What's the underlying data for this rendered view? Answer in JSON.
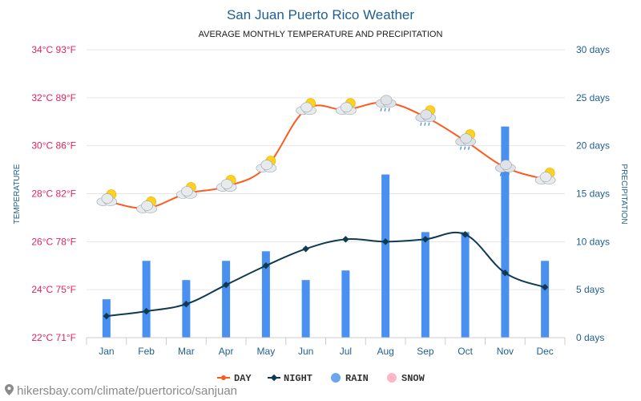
{
  "chart_data": {
    "type": "bar+line",
    "title": "San Juan Puerto Rico Weather",
    "subtitle": "AVERAGE MONTHLY TEMPERATURE AND PRECIPITATION",
    "ylabel_left": "TEMPERATURE",
    "ylabel_right": "PRECIPITATION",
    "categories": [
      "Jan",
      "Feb",
      "Mar",
      "Apr",
      "May",
      "Jun",
      "Jul",
      "Aug",
      "Sep",
      "Oct",
      "Nov",
      "Dec"
    ],
    "left_axis": {
      "range": [
        22,
        34
      ],
      "ticks": [
        22,
        24,
        26,
        28,
        30,
        32,
        34
      ],
      "tick_labels": [
        "22°C 71°F",
        "24°C 75°F",
        "26°C 78°F",
        "28°C 82°F",
        "30°C 86°F",
        "32°C 89°F",
        "34°C 93°F"
      ]
    },
    "right_axis": {
      "range": [
        0,
        30
      ],
      "ticks": [
        0,
        5,
        10,
        15,
        20,
        25,
        30
      ],
      "tick_labels": [
        "0 days",
        "5 days",
        "10 days",
        "15 days",
        "20 days",
        "25 days",
        "30 days"
      ]
    },
    "series": [
      {
        "name": "DAY",
        "type": "line",
        "axis": "left",
        "color": "#ff5a1e",
        "values": [
          27.7,
          27.4,
          28.0,
          28.3,
          29.1,
          31.5,
          31.5,
          31.8,
          31.2,
          30.2,
          29.1,
          28.6
        ]
      },
      {
        "name": "NIGHT",
        "type": "line",
        "axis": "left",
        "color": "#0e3a52",
        "values": [
          22.9,
          23.1,
          23.4,
          24.2,
          25.0,
          25.7,
          26.1,
          26.0,
          26.1,
          26.3,
          24.7,
          24.1
        ]
      },
      {
        "name": "RAIN",
        "type": "bar",
        "axis": "right",
        "color": "#4a90f0",
        "values": [
          4,
          8,
          6,
          8,
          9,
          6,
          7,
          17,
          11,
          11,
          22,
          8
        ]
      },
      {
        "name": "SNOW",
        "type": "bar",
        "axis": "right",
        "color": "#ffb6c8",
        "values": [
          0,
          0,
          0,
          0,
          0,
          0,
          0,
          0,
          0,
          0,
          0,
          0
        ]
      }
    ],
    "weather_icons": [
      "sun-cloud",
      "sun-cloud",
      "sun-cloud",
      "sun-cloud",
      "sun-cloud",
      "sun-cloud",
      "sun-cloud",
      "rain-cloud",
      "sun-rain-cloud",
      "sun-rain-cloud",
      "rain-cloud",
      "sun-cloud"
    ],
    "legend_position": "bottom",
    "grid": true
  },
  "footer": {
    "text": "hikersbay.com/climate/puertorico/sanjuan",
    "icon": "location-pin-icon"
  },
  "colors": {
    "title": "#1f5f8f",
    "left_axis": "#e0245e",
    "right_axis": "#1f5f8f",
    "month_labels": "#1f5f8f",
    "grid": "#e6e6e6"
  }
}
